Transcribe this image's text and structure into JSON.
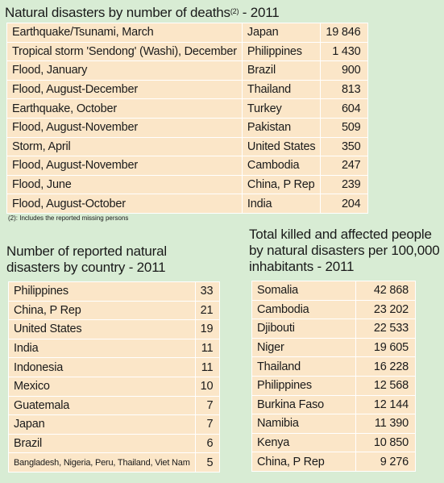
{
  "deaths_title": "Natural disasters by number of deaths",
  "deaths_title_sup": "(2)",
  "deaths_title_year": " - 2011",
  "deaths_rows": [
    {
      "event": "Earthquake/Tsunami, March",
      "country": "Japan",
      "value": "19 846"
    },
    {
      "event": "Tropical storm 'Sendong' (Washi), December",
      "country": "Philippines",
      "value": "1 430"
    },
    {
      "event": "Flood, January",
      "country": "Brazil",
      "value": "900"
    },
    {
      "event": "Flood, August-December",
      "country": "Thailand",
      "value": "813"
    },
    {
      "event": "Earthquake, October",
      "country": "Turkey",
      "value": "604"
    },
    {
      "event": "Flood, August-November",
      "country": "Pakistan",
      "value": "509"
    },
    {
      "event": "Storm, April",
      "country": "United States",
      "value": "350"
    },
    {
      "event": "Flood, August-November",
      "country": "Cambodia",
      "value": "247"
    },
    {
      "event": "Flood, June",
      "country": "China, P Rep",
      "value": "239"
    },
    {
      "event": "Flood, August-October",
      "country": "India",
      "value": "204"
    }
  ],
  "footnote": "(2): Includes the reported missing persons",
  "count_title_line1": "Number of reported natural",
  "count_title_line2": "disasters by country - 2011",
  "count_rows": [
    {
      "country": "Philippines",
      "value": "33"
    },
    {
      "country": "China, P Rep",
      "value": "21"
    },
    {
      "country": "United States",
      "value": "19"
    },
    {
      "country": "India",
      "value": "11"
    },
    {
      "country": "Indonesia",
      "value": "11"
    },
    {
      "country": "Mexico",
      "value": "10"
    },
    {
      "country": "Guatemala",
      "value": "7"
    },
    {
      "country": "Japan",
      "value": "7"
    },
    {
      "country": "Brazil",
      "value": "6"
    },
    {
      "country": "Bangladesh, Nigeria, Peru, Thailand, Viet Nam",
      "value": "5"
    }
  ],
  "affected_title_line1": "Total killed and affected people",
  "affected_title_line2": "by natural disasters per 100,000",
  "affected_title_line3": "inhabitants - 2011",
  "affected_rows": [
    {
      "country": "Somalia",
      "value": "42 868"
    },
    {
      "country": "Cambodia",
      "value": "23 202"
    },
    {
      "country": "Djibouti",
      "value": "22 533"
    },
    {
      "country": "Niger",
      "value": "19 605"
    },
    {
      "country": "Thailand",
      "value": "16 228"
    },
    {
      "country": "Philippines",
      "value": "12 568"
    },
    {
      "country": "Burkina Faso",
      "value": "12 144"
    },
    {
      "country": "Namibia",
      "value": "11 390"
    },
    {
      "country": "Kenya",
      "value": "10 850"
    },
    {
      "country": "China, P Rep",
      "value": "9 276"
    }
  ],
  "colors": {
    "background": "#d8ecd4",
    "cell": "#fbe6c8",
    "border": "#ffffff"
  }
}
